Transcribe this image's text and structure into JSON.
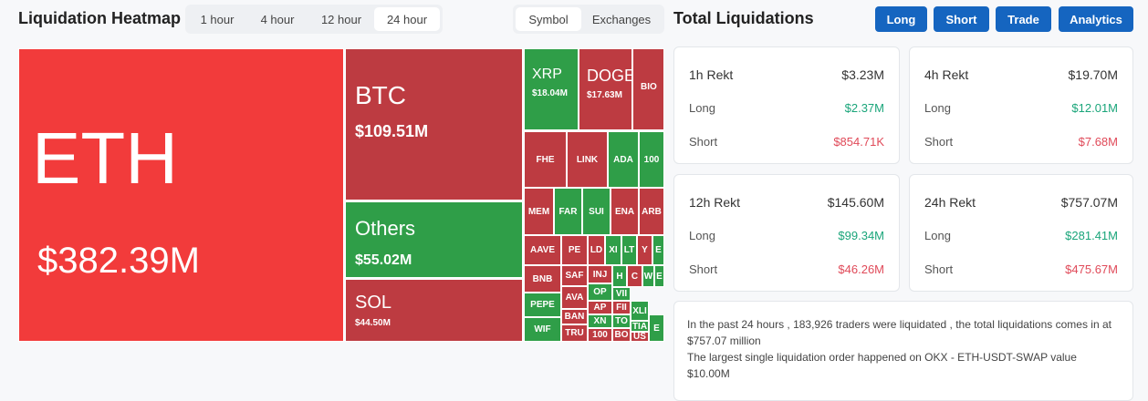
{
  "header": {
    "title": "Liquidation Heatmap",
    "time_tabs": [
      {
        "label": "1 hour",
        "active": false
      },
      {
        "label": "4 hour",
        "active": false
      },
      {
        "label": "12 hour",
        "active": false
      },
      {
        "label": "24 hour",
        "active": true
      }
    ],
    "view_tabs": [
      {
        "label": "Symbol",
        "active": true
      },
      {
        "label": "Exchanges",
        "active": false
      }
    ]
  },
  "heatmap": {
    "tiles": [
      {
        "label": "ETH",
        "value": "$382.39M",
        "color": "#f23b3b"
      },
      {
        "label": "BTC",
        "value": "$109.51M",
        "color": "#bd3b41"
      },
      {
        "label": "Others",
        "value": "$55.02M",
        "color": "#2f9e48"
      },
      {
        "label": "SOL",
        "value": "$44.50M",
        "color": "#bd3b41"
      },
      {
        "label": "XRP",
        "value": "$18.04M",
        "color": "#2f9e48"
      },
      {
        "label": "DOGE",
        "value": "$17.63M",
        "color": "#bd3b41"
      },
      {
        "label": "BIO",
        "color": "#bd3b41"
      },
      {
        "label": "FHE",
        "color": "#bd3b41"
      },
      {
        "label": "LINK",
        "color": "#bd3b41"
      },
      {
        "label": "ADA",
        "color": "#2f9e48"
      },
      {
        "label": "100",
        "color": "#2f9e48"
      },
      {
        "label": "MEM",
        "color": "#bd3b41"
      },
      {
        "label": "FAR",
        "color": "#2f9e48"
      },
      {
        "label": "SUI",
        "color": "#2f9e48"
      },
      {
        "label": "ENA",
        "color": "#bd3b41"
      },
      {
        "label": "ARB",
        "color": "#bd3b41"
      },
      {
        "label": "AAVE",
        "color": "#bd3b41"
      },
      {
        "label": "PE",
        "color": "#bd3b41"
      },
      {
        "label": "LD",
        "color": "#bd3b41"
      },
      {
        "label": "XI",
        "color": "#2f9e48"
      },
      {
        "label": "LT",
        "color": "#2f9e48"
      },
      {
        "label": "Y",
        "color": "#bd3b41"
      },
      {
        "label": "E",
        "color": "#2f9e48"
      },
      {
        "label": "BNB",
        "color": "#bd3b41"
      },
      {
        "label": "PEPE",
        "color": "#2f9e48"
      },
      {
        "label": "WIF",
        "color": "#2f9e48"
      },
      {
        "label": "SAF",
        "color": "#bd3b41"
      },
      {
        "label": "AVA",
        "color": "#bd3b41"
      },
      {
        "label": "BAN",
        "color": "#bd3b41"
      },
      {
        "label": "TRU",
        "color": "#bd3b41"
      },
      {
        "label": "INJ",
        "color": "#bd3b41"
      },
      {
        "label": "OP",
        "color": "#2f9e48"
      },
      {
        "label": "AP",
        "color": "#bd3b41"
      },
      {
        "label": "XN",
        "color": "#2f9e48"
      },
      {
        "label": "100",
        "color": "#bd3b41"
      },
      {
        "label": "H",
        "color": "#2f9e48"
      },
      {
        "label": "VII",
        "color": "#2f9e48"
      },
      {
        "label": "FII",
        "color": "#bd3b41"
      },
      {
        "label": "TO",
        "color": "#2f9e48"
      },
      {
        "label": "BO",
        "color": "#bd3b41"
      },
      {
        "label": "C",
        "color": "#bd3b41"
      },
      {
        "label": "W",
        "color": "#2f9e48"
      },
      {
        "label": "E",
        "color": "#2f9e48"
      },
      {
        "label": "XLI",
        "color": "#2f9e48"
      },
      {
        "label": "TIA",
        "color": "#2f9e48"
      },
      {
        "label": "US",
        "color": "#bd3b41"
      },
      {
        "label": "E",
        "color": "#2f9e48"
      }
    ]
  },
  "summary": {
    "title": "Total Liquidations",
    "buttons": [
      "Long",
      "Short",
      "Trade",
      "Analytics"
    ],
    "cards": [
      {
        "period": "1h Rekt",
        "total": "$3.23M",
        "rows": [
          {
            "label": "Long",
            "value": "$2.37M"
          },
          {
            "label": "Short",
            "value": "$854.71K"
          }
        ]
      },
      {
        "period": "4h Rekt",
        "total": "$19.70M",
        "rows": [
          {
            "label": "Long",
            "value": "$12.01M"
          },
          {
            "label": "Short",
            "value": "$7.68M"
          }
        ]
      },
      {
        "period": "12h Rekt",
        "total": "$145.60M",
        "rows": [
          {
            "label": "Long",
            "value": "$99.34M"
          },
          {
            "label": "Short",
            "value": "$46.26M"
          }
        ]
      },
      {
        "period": "24h Rekt",
        "total": "$757.07M",
        "rows": [
          {
            "label": "Long",
            "value": "$281.41M"
          },
          {
            "label": "Short",
            "value": "$475.67M"
          }
        ]
      }
    ],
    "notes": [
      "In the past 24 hours , 183,926 traders were liquidated , the total liquidations comes in at $757.07 million",
      "The largest single liquidation order happened on OKX - ETH-USDT-SWAP value $10.00M"
    ]
  }
}
